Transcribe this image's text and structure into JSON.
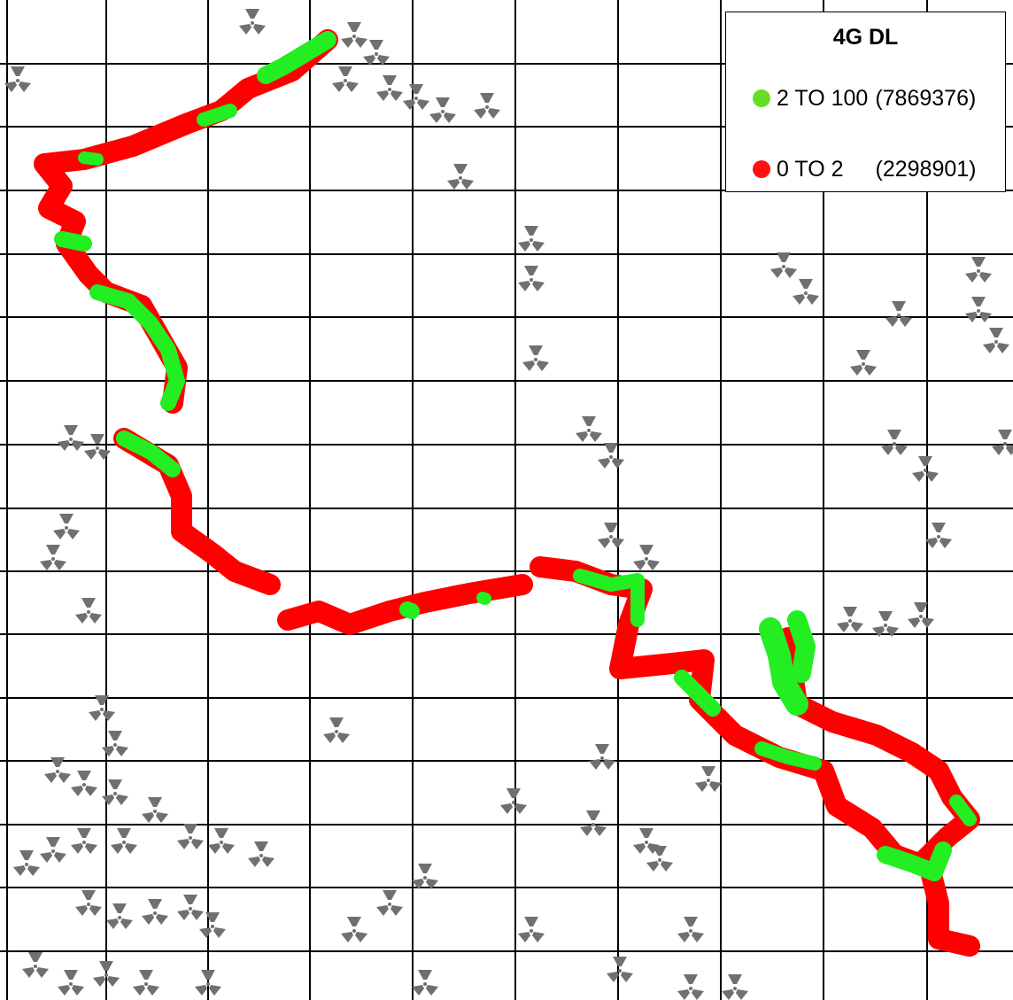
{
  "legend": {
    "title": "4G DL",
    "items": [
      {
        "range": "2 TO 100",
        "count": "(7869376)",
        "color": "#66dd22"
      },
      {
        "range": "0 TO 2",
        "count": "(2298901)",
        "color": "#ff1111"
      }
    ]
  },
  "map_style": {
    "background": "#ffffff",
    "grid_color": "#000000",
    "site_icon": "radiation-trefoil-icon",
    "site_icon_color": "#707070",
    "good_color": "#22ee22",
    "poor_color": "#ff0000"
  }
}
